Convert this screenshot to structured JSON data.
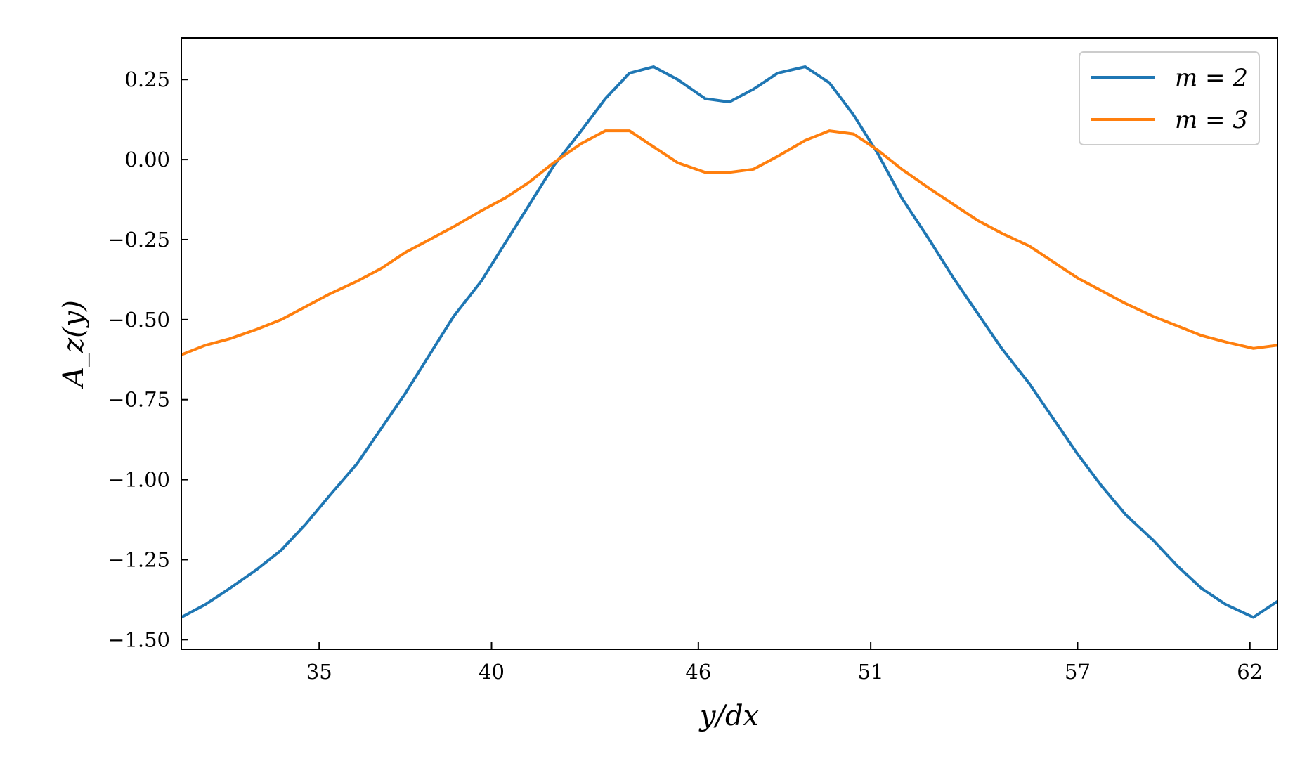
{
  "chart_data": {
    "type": "line",
    "title": "",
    "xlabel": "y/dx",
    "ylabel": "A_z(y)",
    "xlim": [
      31,
      62.8
    ],
    "ylim": [
      -1.53,
      0.38
    ],
    "xticks": [
      35,
      40,
      46,
      51,
      57,
      62
    ],
    "xtick_labels": [
      "35",
      "40",
      "46",
      "51",
      "57",
      "62"
    ],
    "yticks": [
      0.25,
      0.0,
      -0.25,
      -0.5,
      -0.75,
      -1.0,
      -1.25,
      -1.5
    ],
    "ytick_labels": [
      "0.25",
      "0.00",
      "−0.25",
      "−0.50",
      "−0.75",
      "−1.00",
      "−1.25",
      "−1.50"
    ],
    "grid": false,
    "legend_position": "top-right",
    "series": [
      {
        "name": "m = 2",
        "color": "#1f77b4",
        "x": [
          31.0,
          31.7,
          32.4,
          33.2,
          33.9,
          34.6,
          35.3,
          36.1,
          36.8,
          37.5,
          38.2,
          38.9,
          39.7,
          40.4,
          41.1,
          41.8,
          42.6,
          43.3,
          44.0,
          44.7,
          45.4,
          46.2,
          46.9,
          47.6,
          48.3,
          49.1,
          49.8,
          50.5,
          51.2,
          51.9,
          52.7,
          53.4,
          54.1,
          54.8,
          55.6,
          56.3,
          57.0,
          57.7,
          58.4,
          59.2,
          59.9,
          60.6,
          61.3,
          62.1,
          62.8
        ],
        "y": [
          -1.43,
          -1.39,
          -1.34,
          -1.28,
          -1.22,
          -1.14,
          -1.05,
          -0.95,
          -0.84,
          -0.73,
          -0.61,
          -0.49,
          -0.38,
          -0.26,
          -0.14,
          -0.02,
          0.09,
          0.19,
          0.27,
          0.29,
          0.25,
          0.19,
          0.18,
          0.22,
          0.27,
          0.29,
          0.24,
          0.14,
          0.02,
          -0.12,
          -0.25,
          -0.37,
          -0.48,
          -0.59,
          -0.7,
          -0.81,
          -0.92,
          -1.02,
          -1.11,
          -1.19,
          -1.27,
          -1.34,
          -1.39,
          -1.43,
          -1.38
        ],
        "note_removed": true
      },
      {
        "name": "m = 3",
        "color": "#ff7f0e",
        "x": [
          31.0,
          31.7,
          32.4,
          33.2,
          33.9,
          34.6,
          35.3,
          36.1,
          36.8,
          37.5,
          38.2,
          38.9,
          39.7,
          40.4,
          41.1,
          41.8,
          42.6,
          43.3,
          44.0,
          44.7,
          45.4,
          46.2,
          46.9,
          47.6,
          48.3,
          49.1,
          49.8,
          50.5,
          51.2,
          51.9,
          52.7,
          53.4,
          54.1,
          54.8,
          55.6,
          56.3,
          57.0,
          57.7,
          58.4,
          59.2,
          59.9,
          60.6,
          61.3,
          62.1,
          62.8
        ],
        "y": [
          -0.61,
          -0.58,
          -0.56,
          -0.53,
          -0.5,
          -0.46,
          -0.42,
          -0.38,
          -0.34,
          -0.29,
          -0.25,
          -0.21,
          -0.16,
          -0.12,
          -0.07,
          -0.01,
          0.05,
          0.09,
          0.09,
          0.04,
          -0.01,
          -0.04,
          -0.04,
          -0.03,
          0.01,
          0.06,
          0.09,
          0.08,
          0.03,
          -0.03,
          -0.09,
          -0.14,
          -0.19,
          -0.23,
          -0.27,
          -0.32,
          -0.37,
          -0.41,
          -0.45,
          -0.49,
          -0.52,
          -0.55,
          -0.57,
          -0.59,
          -0.58
        ]
      }
    ]
  }
}
